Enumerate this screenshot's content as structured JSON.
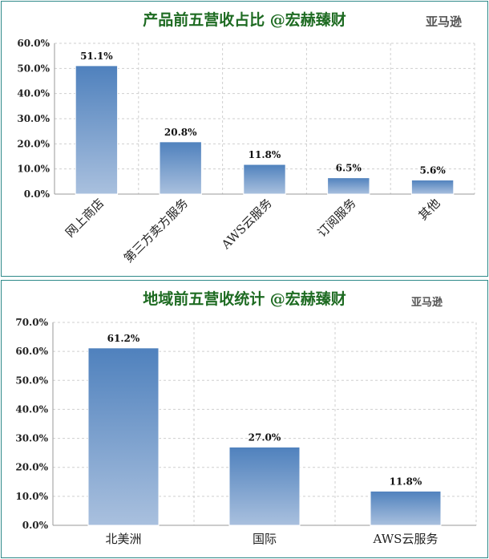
{
  "chart_data": [
    {
      "type": "bar",
      "title": "产品前五营收占比 @宏赫臻财",
      "company": "亚马逊",
      "categories": [
        "网上商店",
        "第三方卖方服务",
        "AWS云服务",
        "订阅服务",
        "其他"
      ],
      "values": [
        51.1,
        20.8,
        11.8,
        6.5,
        5.6
      ],
      "data_labels": [
        "51.1%",
        "20.8%",
        "11.8%",
        "6.5%",
        "5.6%"
      ],
      "yticks": [
        "0.0%",
        "10.0%",
        "20.0%",
        "30.0%",
        "40.0%",
        "50.0%",
        "60.0%"
      ],
      "ylim": [
        0,
        60
      ],
      "grid": true,
      "bar_color_top": "#4f81bd",
      "bar_color_bottom": "#a9c0de"
    },
    {
      "type": "bar",
      "title": "地域前五营收统计 @宏赫臻财",
      "company": "亚马逊",
      "categories": [
        "北美洲",
        "国际",
        "AWS云服务"
      ],
      "values": [
        61.2,
        27.0,
        11.8
      ],
      "data_labels": [
        "61.2%",
        "27.0%",
        "11.8%"
      ],
      "yticks": [
        "0.0%",
        "10.0%",
        "20.0%",
        "30.0%",
        "40.0%",
        "50.0%",
        "60.0%",
        "70.0%"
      ],
      "ylim": [
        0,
        70
      ],
      "grid": true,
      "bar_color_top": "#4f81bd",
      "bar_color_bottom": "#a9c0de"
    }
  ]
}
